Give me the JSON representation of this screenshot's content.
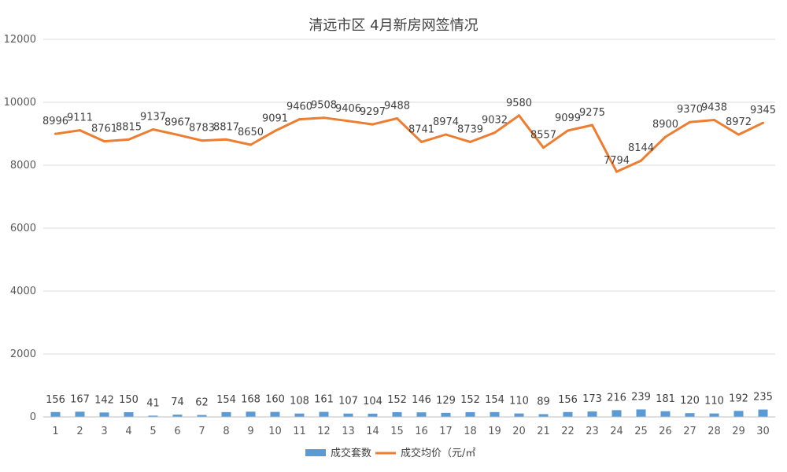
{
  "chart_data": {
    "type": "bar+line",
    "title": "清远市区 4月新房网签情况",
    "categories": [
      "1",
      "2",
      "3",
      "4",
      "5",
      "6",
      "7",
      "8",
      "9",
      "10",
      "11",
      "12",
      "13",
      "14",
      "15",
      "16",
      "17",
      "18",
      "19",
      "20",
      "21",
      "22",
      "23",
      "24",
      "25",
      "26",
      "27",
      "28",
      "29",
      "30"
    ],
    "series": [
      {
        "name": "成交套数",
        "type": "bar",
        "color": "#5B9BD5",
        "values": [
          156,
          167,
          142,
          150,
          41,
          74,
          62,
          154,
          168,
          160,
          108,
          161,
          107,
          104,
          152,
          146,
          129,
          152,
          154,
          110,
          89,
          156,
          173,
          216,
          239,
          181,
          120,
          110,
          192,
          235
        ]
      },
      {
        "name": "成交均价（元/㎡",
        "type": "line",
        "color": "#ED7D31",
        "values": [
          8996,
          9111,
          8761,
          8815,
          9137,
          8967,
          8783,
          8817,
          8650,
          9091,
          9460,
          9508,
          9406,
          9297,
          9488,
          8741,
          8974,
          8739,
          9032,
          9580,
          8557,
          9099,
          9275,
          7794,
          8144,
          8900,
          9370,
          9438,
          8972,
          9345
        ]
      }
    ],
    "yticks": [
      "0",
      "2000",
      "4000",
      "6000",
      "8000",
      "10000",
      "12000"
    ],
    "ylim": [
      0,
      12000
    ],
    "grid": true,
    "legend_position": "bottom"
  }
}
